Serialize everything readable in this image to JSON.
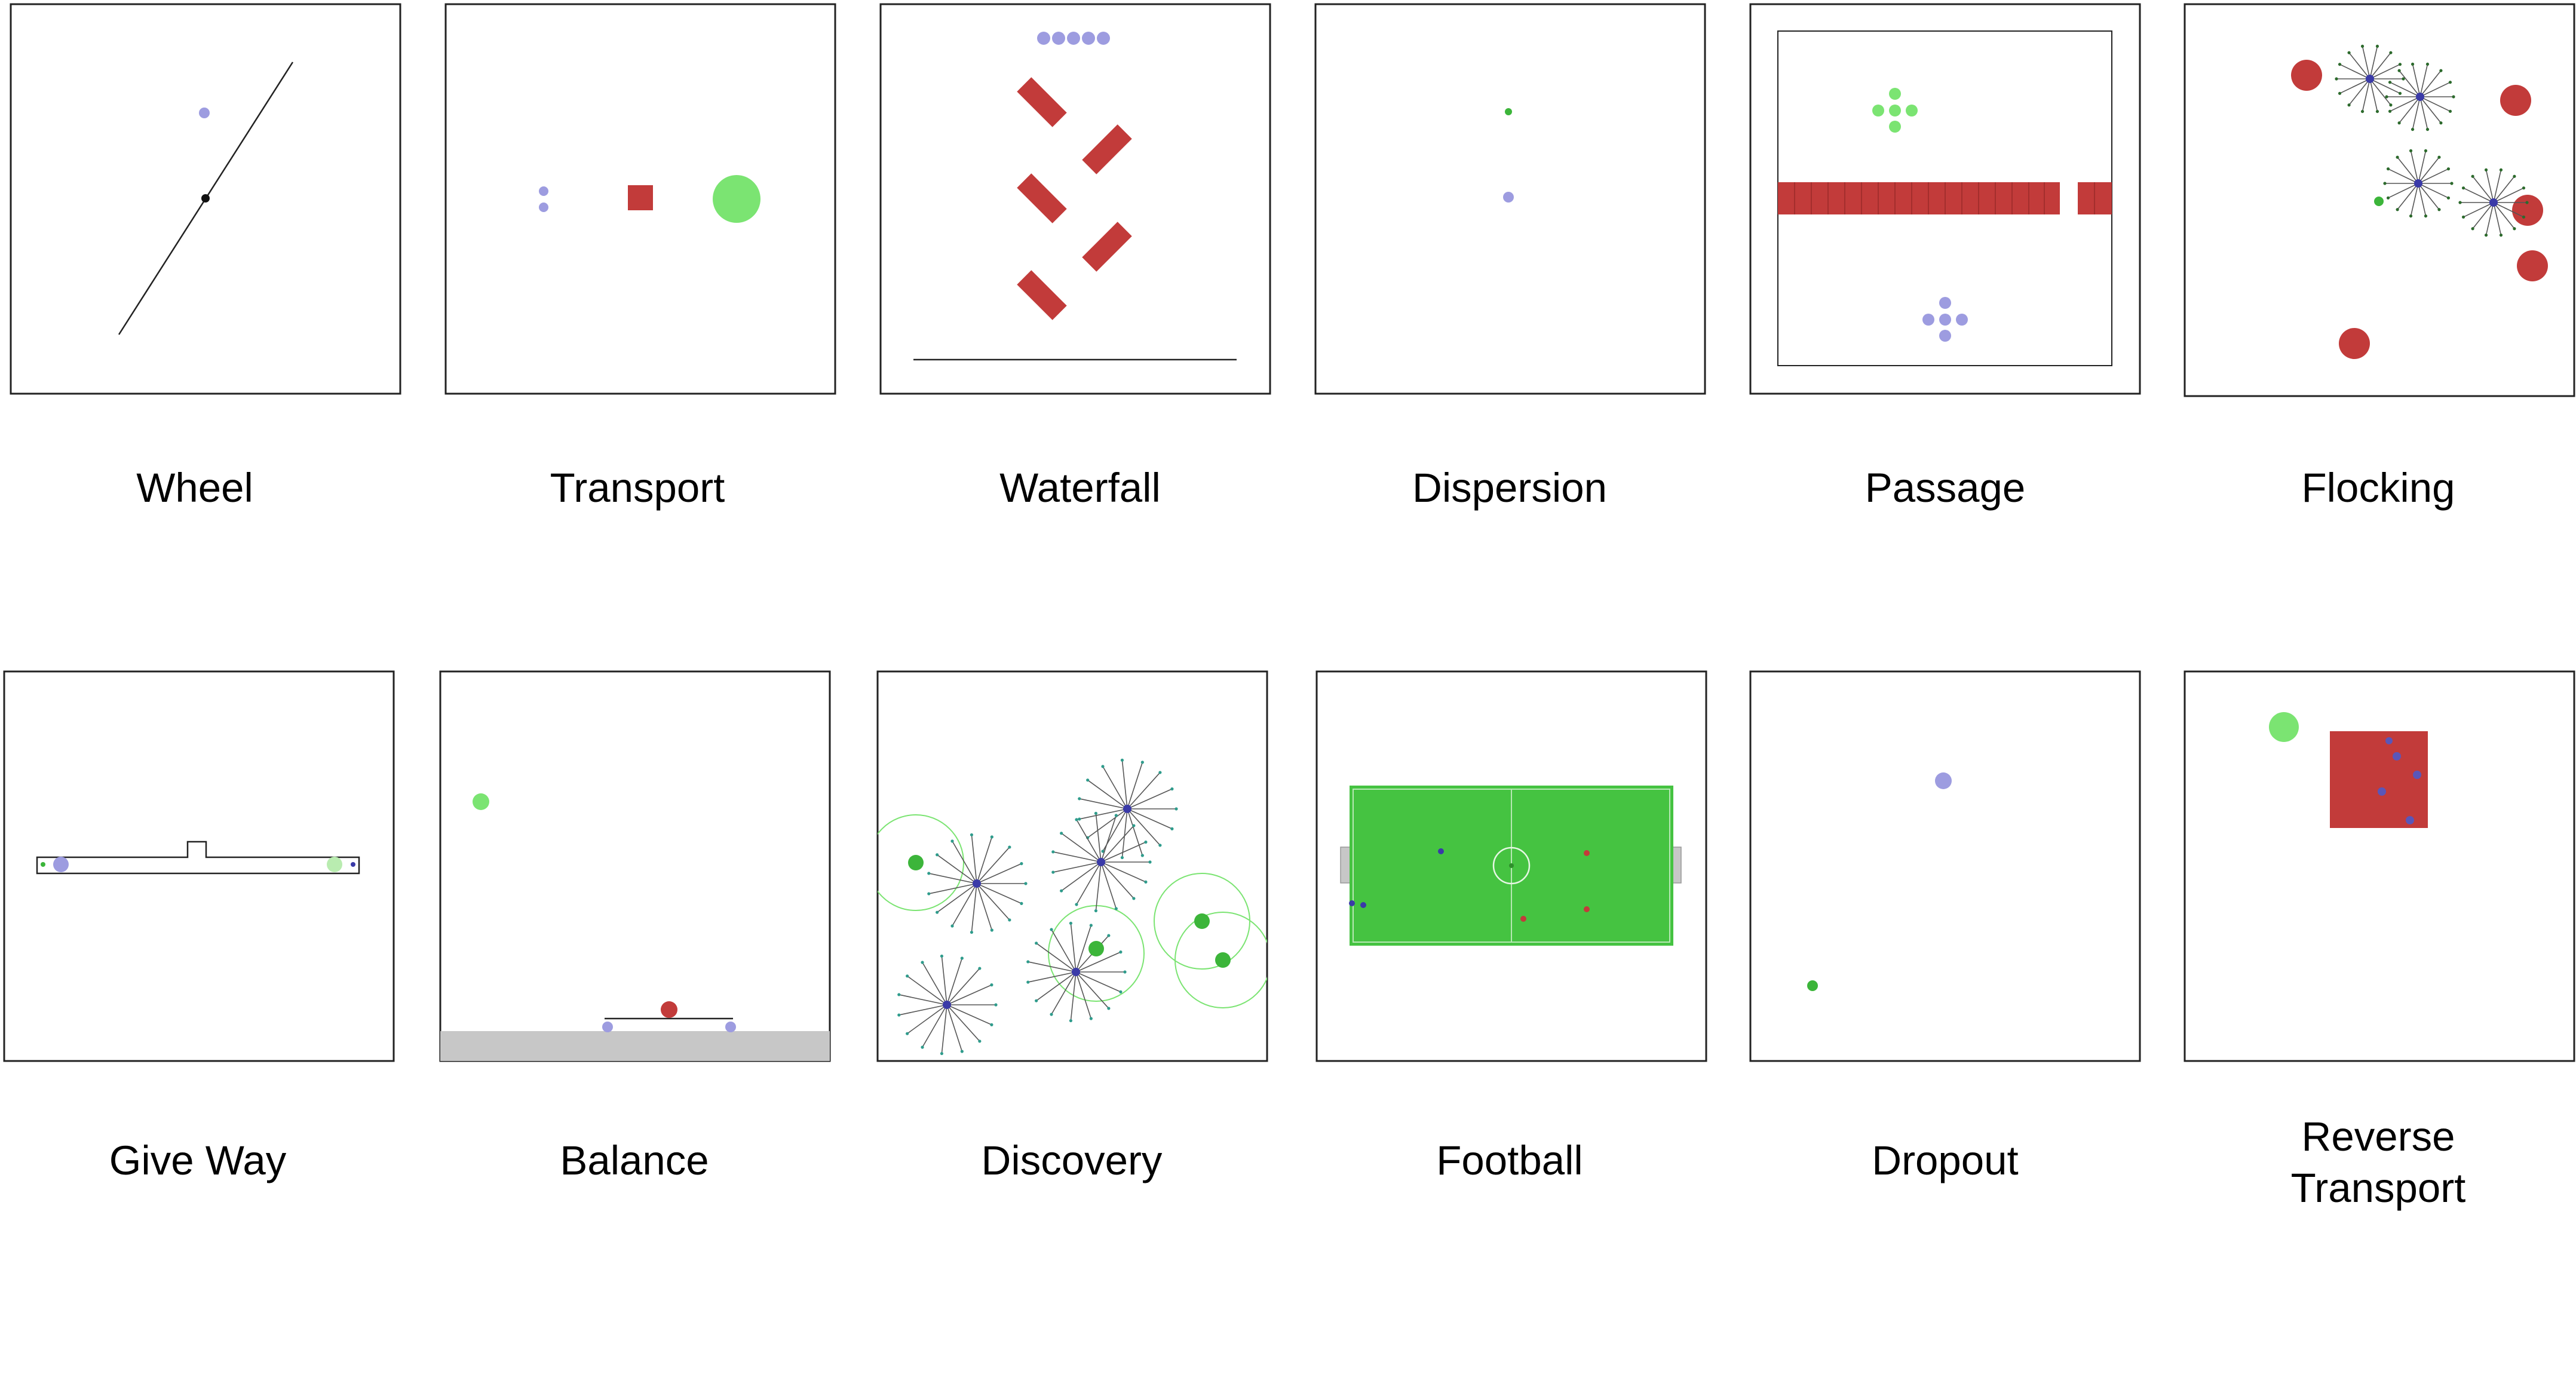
{
  "colors": {
    "agent": "#9d9ce0",
    "agent_dark": "#3a3aa8",
    "goal": "#7be472",
    "goal_dark": "#3cb53a",
    "obstacle": "#c23b3a",
    "field": "#45c341",
    "ground": "#c7c7c7",
    "line": "#222222"
  },
  "scenarios": [
    {
      "name": "Wheel"
    },
    {
      "name": "Transport"
    },
    {
      "name": "Waterfall"
    },
    {
      "name": "Dispersion"
    },
    {
      "name": "Passage"
    },
    {
      "name": "Flocking"
    },
    {
      "name": "Give Way"
    },
    {
      "name": "Balance"
    },
    {
      "name": "Discovery"
    },
    {
      "name": "Football"
    },
    {
      "name": "Dropout"
    },
    {
      "name": "Reverse\nTransport"
    }
  ]
}
